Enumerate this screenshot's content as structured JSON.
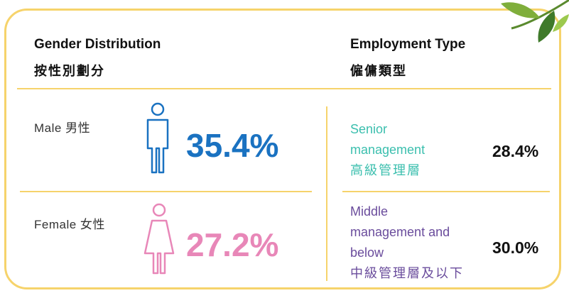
{
  "gender": {
    "title": "Gender Distribution",
    "title_zh": "按性別劃分",
    "male": {
      "label": "Male  男性",
      "value": "35.4%"
    },
    "female": {
      "label": "Female 女性",
      "value": "27.2%"
    }
  },
  "employment": {
    "title": "Employment Type",
    "title_zh": "僱傭類型",
    "senior": {
      "lines": [
        "Senior",
        "management",
        "高級管理層"
      ],
      "value": "28.4%"
    },
    "middle": {
      "lines": [
        "Middle",
        "management and",
        "below",
        "中級管理層及以下"
      ],
      "value": "30.0%"
    }
  }
}
